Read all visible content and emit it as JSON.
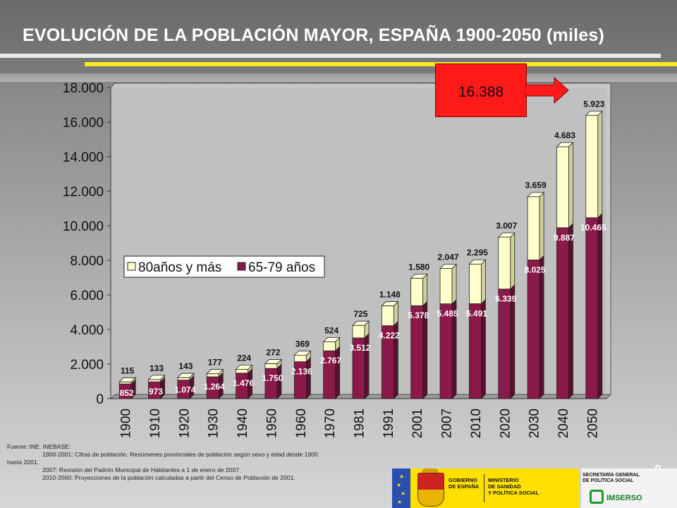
{
  "title": "EVOLUCIÓN DE LA POBLACIÓN MAYOR, ESPAÑA 1900-2050 (miles)",
  "callout": {
    "value": "16.388"
  },
  "page_number": "8",
  "footnote": {
    "line1": "Fuente: INE. INEBASE:",
    "line2": "1900-2001: Cifras de población. Resúmenes provinciales de población según sexo y edad desde 1900",
    "line3": "hasta 2001.",
    "line4": "2007: Revisión del Padrón Municipal de Habitantes a 1 de enero de 2007.",
    "line5": "2010-2060: Proyecciones de la población calculadas a partir del Censo de Población de 2001."
  },
  "logos": {
    "gobierno": [
      "GOBIERNO",
      "DE ESPAÑA"
    ],
    "ministerio": [
      "MINISTERIO",
      "DE SANIDAD",
      "Y POLÍTICA SOCIAL"
    ],
    "secretaria": [
      "SECRETARÍA GENERAL",
      "DE POLÍTICA SOCIAL"
    ],
    "imserso": "IMSERSO"
  },
  "colors": {
    "series_65_79": "#8b1a4a",
    "series_80_plus": "#ffffcc",
    "callout": "#ff1a1a"
  },
  "chart_data": {
    "type": "bar",
    "stacked": true,
    "categories": [
      "1900",
      "1910",
      "1920",
      "1930",
      "1940",
      "1950",
      "1960",
      "1970",
      "1981",
      "1991",
      "2001",
      "2007",
      "2010",
      "2020",
      "2030",
      "2040",
      "2050"
    ],
    "series": [
      {
        "name": "65-79 años",
        "values": [
          852,
          973,
          1074,
          1264,
          1476,
          1750,
          2136,
          2767,
          3512,
          4222,
          5378,
          5485,
          5491,
          6339,
          8025,
          9887,
          10465
        ],
        "labels": [
          "852",
          "973",
          "1.074",
          "1.264",
          "1.476",
          "1.750",
          "2.136",
          "2.767",
          "3.512",
          "4.222",
          "5.378",
          "5.485",
          "5.491",
          "6.339",
          "8.025",
          "9.887",
          "10.465"
        ]
      },
      {
        "name": "80años y más",
        "values": [
          115,
          133,
          143,
          177,
          224,
          272,
          369,
          524,
          725,
          1148,
          1580,
          2047,
          2295,
          3007,
          3659,
          4683,
          5923
        ],
        "labels": [
          "115",
          "133",
          "143",
          "177",
          "224",
          "272",
          "369",
          "524",
          "725",
          "1.148",
          "1.580",
          "2.047",
          "2.295",
          "3.007",
          "3.659",
          "4.683",
          "5.923"
        ]
      }
    ],
    "y_ticks": [
      "0",
      "2.000",
      "4.000",
      "6.000",
      "8.000",
      "10.000",
      "12.000",
      "14.000",
      "16.000",
      "18.000"
    ],
    "ylim": [
      0,
      18000
    ],
    "legend": {
      "position": "middle-left",
      "entries": [
        "80años y más",
        "65-79 años"
      ]
    },
    "xlabel": "",
    "ylabel": ""
  }
}
